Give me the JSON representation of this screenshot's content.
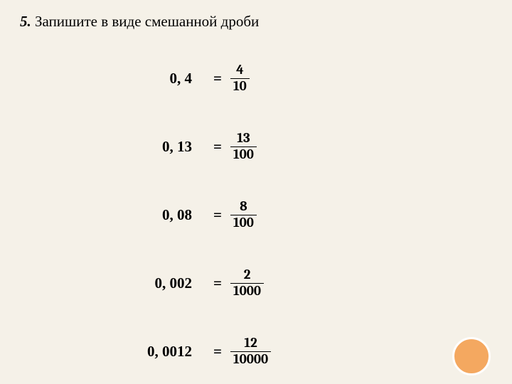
{
  "title": {
    "number": "5.",
    "text": "Запишите в виде смешанной дроби"
  },
  "rows": [
    {
      "decimal": "0, 4",
      "numerator": "4",
      "denominator": "10"
    },
    {
      "decimal": "0, 13",
      "numerator": "13",
      "denominator": "100"
    },
    {
      "decimal": "0, 08",
      "numerator": "8",
      "denominator": "100"
    },
    {
      "decimal": "0, 002",
      "numerator": "2",
      "denominator": "1000"
    },
    {
      "decimal": "0, 0012",
      "numerator": "12",
      "denominator": "10000"
    }
  ],
  "equals": "=",
  "colors": {
    "background": "#f5f1e8",
    "text": "#000000",
    "circle_fill": "#f4a860",
    "circle_border": "#ffffff"
  },
  "fonts": {
    "title_size_pt": 16,
    "decimal_size_pt": 16,
    "fraction_size_pt": 14
  }
}
